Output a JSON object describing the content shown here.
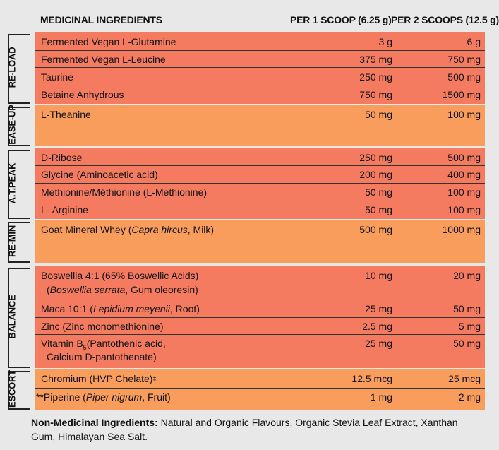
{
  "header": {
    "ingredients": "MEDICINAL INGREDIENTS",
    "col1": "PER 1 SCOOP (6.25 g)",
    "col2": "PER 2 SCOOPS (12.5 g)"
  },
  "groups": [
    {
      "label": "RE-LOAD",
      "color": "#f47b60",
      "rows": [
        {
          "name": "Fermented Vegan L-Glutamine",
          "v1": "3 g",
          "v2": "6 g"
        },
        {
          "name": "Fermented Vegan L-Leucine",
          "v1": "375 mg",
          "v2": "750 mg"
        },
        {
          "name": "Taurine",
          "v1": "250 mg",
          "v2": "500 mg"
        },
        {
          "name": "Betaine Anhydrous",
          "v1": "750 mg",
          "v2": "1500 mg"
        }
      ]
    },
    {
      "label": "EASE-UP",
      "color": "#f89d5c",
      "rows": [
        {
          "name": "L-Theanine",
          "v1": "50 mg",
          "v2": "100 mg"
        }
      ]
    },
    {
      "label": "A.T.PEAK",
      "color": "#f47b60",
      "rows": [
        {
          "name": "D-Ribose",
          "v1": "250 mg",
          "v2": "500 mg"
        },
        {
          "name": "Glycine (Aminoacetic acid)",
          "v1": "200 mg",
          "v2": "400 mg"
        },
        {
          "name": "Methionine/Méthionine (L-Methionine)",
          "v1": "50 mg",
          "v2": "100 mg"
        },
        {
          "name": "L- Arginine",
          "v1": "50 mg",
          "v2": "100 mg"
        }
      ]
    },
    {
      "label": "RE-MIN",
      "color": "#f89d5c",
      "rows": [
        {
          "name_pre": "Goat Mineral Whey (",
          "name_it": "Capra hircus",
          "name_post": ", Milk)",
          "v1": "500 mg",
          "v2": "1000 mg"
        }
      ]
    },
    {
      "label": "BALANCE",
      "color": "#f47b60",
      "rows": [
        {
          "name": "Boswellia 4:1 (65% Boswellic Acids)",
          "name2_pre": "(",
          "name2_it": "Boswellia serrata",
          "name2_post": ", Gum oleoresin)",
          "v1": "10 mg",
          "v2": "20 mg"
        },
        {
          "name_pre": "Maca 10:1 (",
          "name_it": "Lepidium meyenii",
          "name_post": ", Root)",
          "v1": "25 mg",
          "v2": "50 mg"
        },
        {
          "name": "Zinc (Zinc monomethionine)",
          "v1": "2.5 mg",
          "v2": "5 mg"
        },
        {
          "name_pre": "Vitamin B",
          "name_sub": "5",
          "name_post": "(Pantothenic acid,",
          "name2": "Calcium D-pantothenate)",
          "v1": "25 mg",
          "v2": "50 mg"
        }
      ]
    },
    {
      "label": "ESCORT",
      "color": "#f89d5c",
      "rows": [
        {
          "name": "Chromium (HVP Chelate)",
          "name_sup": "‡",
          "v1": "12.5 mcg",
          "v2": "25 mcg"
        },
        {
          "name_pre": "**Piperine (",
          "name_it": "Piper nigrum",
          "name_post": ", Fruit)",
          "v1": "1 mg",
          "v2": "2 mg"
        }
      ]
    }
  ],
  "footer": {
    "label": "Non-Medicinal Ingredients:",
    "text": " Natural and Organic Flavours, Organic Stevia Leaf Extract, Xanthan Gum, Himalayan Sea Salt."
  }
}
